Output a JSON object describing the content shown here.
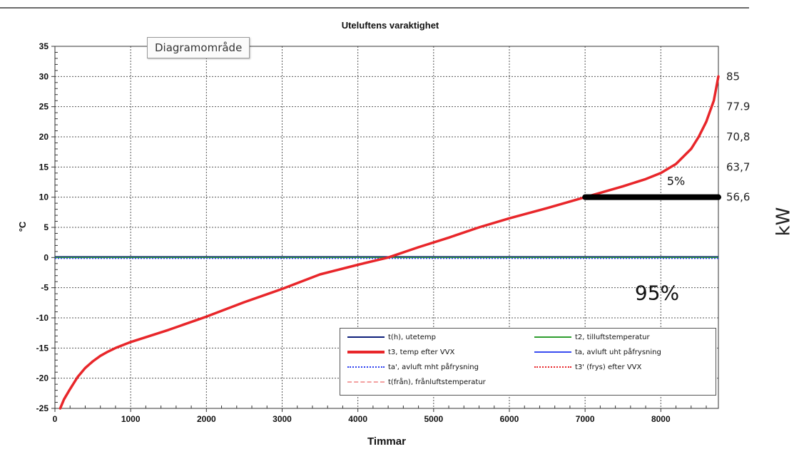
{
  "chart_data": {
    "type": "line",
    "title": "Uteluftens varaktighet",
    "xlabel": "Timmar",
    "ylabel": "°C",
    "secondary_ylabel": "kW",
    "xlim": [
      0,
      8760
    ],
    "ylim": [
      -25,
      35
    ],
    "xticks": [
      0,
      1000,
      2000,
      3000,
      4000,
      5000,
      6000,
      7000,
      8000
    ],
    "yticks": [
      35,
      30,
      25,
      20,
      15,
      10,
      5,
      0,
      -5,
      -10,
      -15,
      -20,
      -25
    ],
    "secondary_ticks": [
      {
        "label": "85",
        "at_temp": 30
      },
      {
        "label": "77.9",
        "at_temp": 25
      },
      {
        "label": "70,8",
        "at_temp": 20
      },
      {
        "label": "63,7",
        "at_temp": 15
      },
      {
        "label": "56,6",
        "at_temp": 10
      }
    ],
    "grid": true,
    "series": [
      {
        "name": "t(h), utetemp",
        "color": "#0d1f7a",
        "style": "solid",
        "x": [
          0,
          8760
        ],
        "y": [
          0,
          0
        ]
      },
      {
        "name": "t2, tilluftstemperatur",
        "color": "#2e9d2e",
        "style": "solid",
        "x": [
          0,
          8760
        ],
        "y": [
          0,
          0
        ]
      },
      {
        "name": "t3, temp efter VVX",
        "color": "#e8262a",
        "style": "solid",
        "x": [
          70,
          120,
          200,
          300,
          400,
          500,
          600,
          700,
          800,
          1000,
          1500,
          2000,
          2500,
          3000,
          3500,
          4000,
          4400,
          4800,
          5200,
          5600,
          6000,
          6500,
          7000,
          7500,
          7800,
          8000,
          8200,
          8400,
          8500,
          8600,
          8700,
          8760
        ],
        "y": [
          -25,
          -23.5,
          -21.8,
          -19.8,
          -18.3,
          -17.2,
          -16.3,
          -15.6,
          -15,
          -14,
          -12,
          -9.8,
          -7.4,
          -5.2,
          -2.8,
          -1.2,
          0,
          1.7,
          3.3,
          5,
          6.5,
          8.2,
          10,
          11.8,
          13,
          14,
          15.5,
          18,
          20,
          22.5,
          26,
          30
        ]
      },
      {
        "name": "ta, avluft uht påfrysning",
        "color": "#3a4df0",
        "style": "solid",
        "x": [],
        "y": []
      },
      {
        "name": "ta', avluft mht påfrysning",
        "color": "#2a3df0",
        "style": "dotted",
        "x": [
          0,
          8760
        ],
        "y": [
          0,
          0
        ]
      },
      {
        "name": "t3' (frys) efter VVX",
        "color": "#e8262a",
        "style": "dotted",
        "x": [],
        "y": []
      },
      {
        "name": "t(från), frånluftstemperatur",
        "color": "#f3a0a0",
        "style": "dashed",
        "x": [],
        "y": []
      }
    ],
    "annotations": [
      {
        "type": "hline",
        "x_from": 7000,
        "x_to": 8760,
        "y": 10,
        "color": "#000000"
      },
      {
        "text": "5%",
        "x": 8200,
        "y": 12
      },
      {
        "text": "95%",
        "x": 7950,
        "y": -7
      }
    ],
    "legend": {
      "position": "bottom-right",
      "columns": 2
    }
  },
  "ui": {
    "tooltip": "Diagramområde"
  }
}
